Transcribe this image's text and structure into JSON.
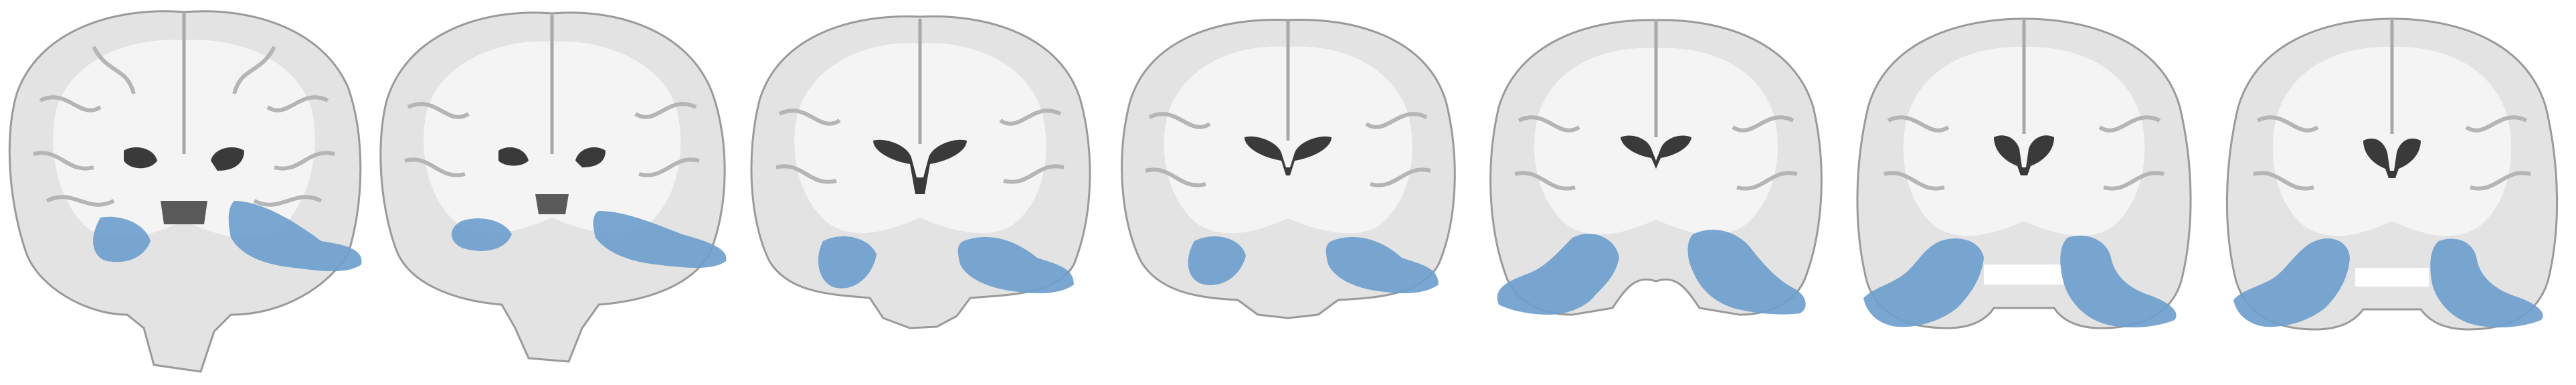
{
  "figure": {
    "view": "coronal",
    "slice_count": 7,
    "colors": {
      "background": "#ffffff",
      "brain_gray": "#e6e6e6",
      "white_matter": "#f5f5f5",
      "gray_matter": "#b4b4b4",
      "ventricle": "#3c3c3c",
      "overlay": "#6f9fcd"
    },
    "slices": [
      {
        "id": 1,
        "overlay": "bilateral-temporal-lobe"
      },
      {
        "id": 2,
        "overlay": "bilateral-temporal-lobe"
      },
      {
        "id": 3,
        "overlay": "bilateral-temporal-lobe"
      },
      {
        "id": 4,
        "overlay": "bilateral-temporal-lobe"
      },
      {
        "id": 5,
        "overlay": "bilateral-temporal-lobe"
      },
      {
        "id": 6,
        "overlay": "bilateral-temporal-lobe"
      },
      {
        "id": 7,
        "overlay": "bilateral-temporal-lobe"
      }
    ]
  }
}
